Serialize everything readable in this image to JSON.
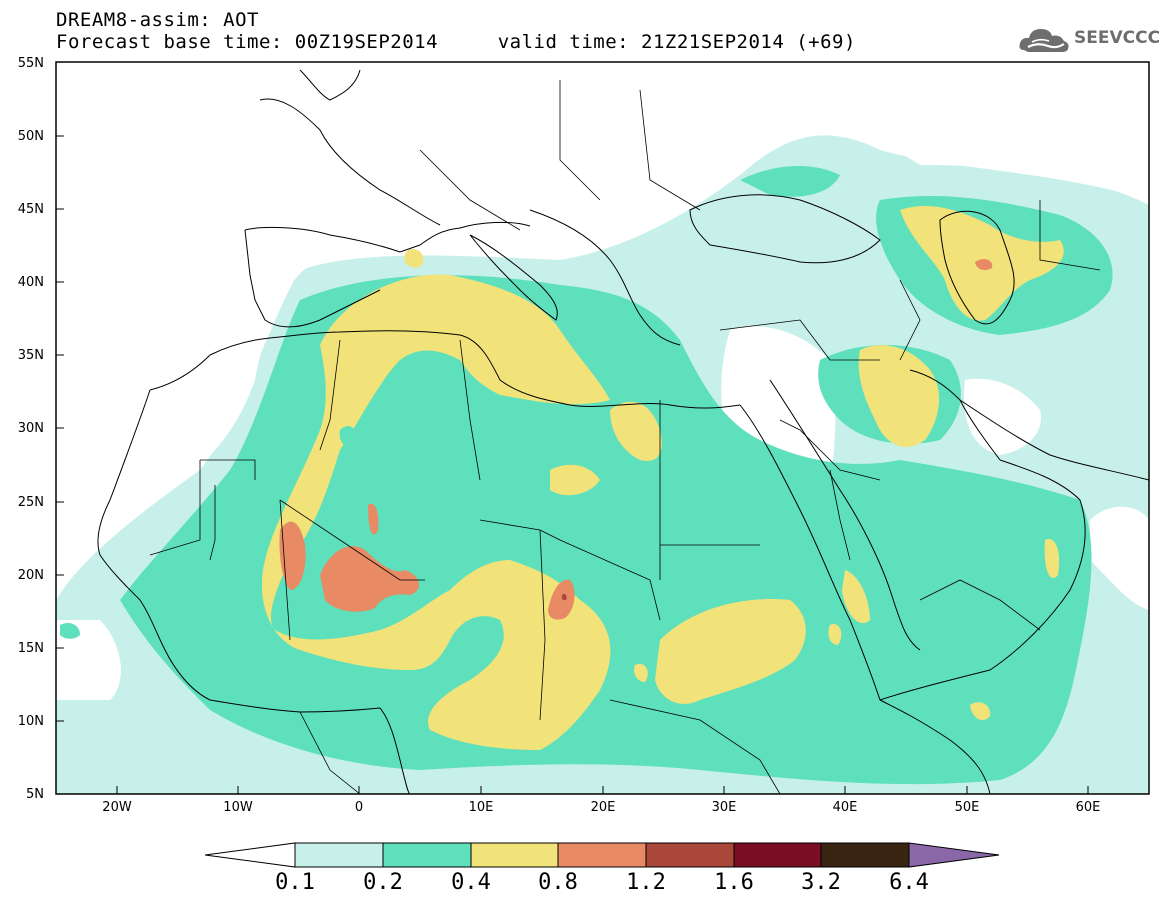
{
  "header": {
    "line1": "DREAM8-assim: AOT",
    "line2": "Forecast base time: 00Z19SEP2014     valid time: 21Z21SEP2014 (+69)"
  },
  "logo": {
    "text": "SEEVCCC",
    "icon": "cloud-icon"
  },
  "map": {
    "lat_labels": [
      "55N",
      "50N",
      "45N",
      "40N",
      "35N",
      "30N",
      "25N",
      "20N",
      "15N",
      "10N",
      "5N"
    ],
    "lon_labels": [
      "20W",
      "10W",
      "0",
      "10E",
      "20E",
      "30E",
      "40E",
      "50E",
      "60E"
    ],
    "lon_range": [
      -25,
      65
    ],
    "lat_range": [
      5,
      55
    ]
  },
  "colorbar": {
    "labels": [
      "0.1",
      "0.2",
      "0.4",
      "0.8",
      "1.2",
      "1.6",
      "3.2",
      "6.4"
    ],
    "colors": {
      "below": "#ffffff",
      "c1": "#c8f0ea",
      "c2": "#5ee0bd",
      "c3": "#f2e27a",
      "c4": "#e88b64",
      "c5": "#a8473a",
      "c6": "#7a0e24",
      "c7": "#3a2412",
      "above": "#8a68a8"
    }
  }
}
